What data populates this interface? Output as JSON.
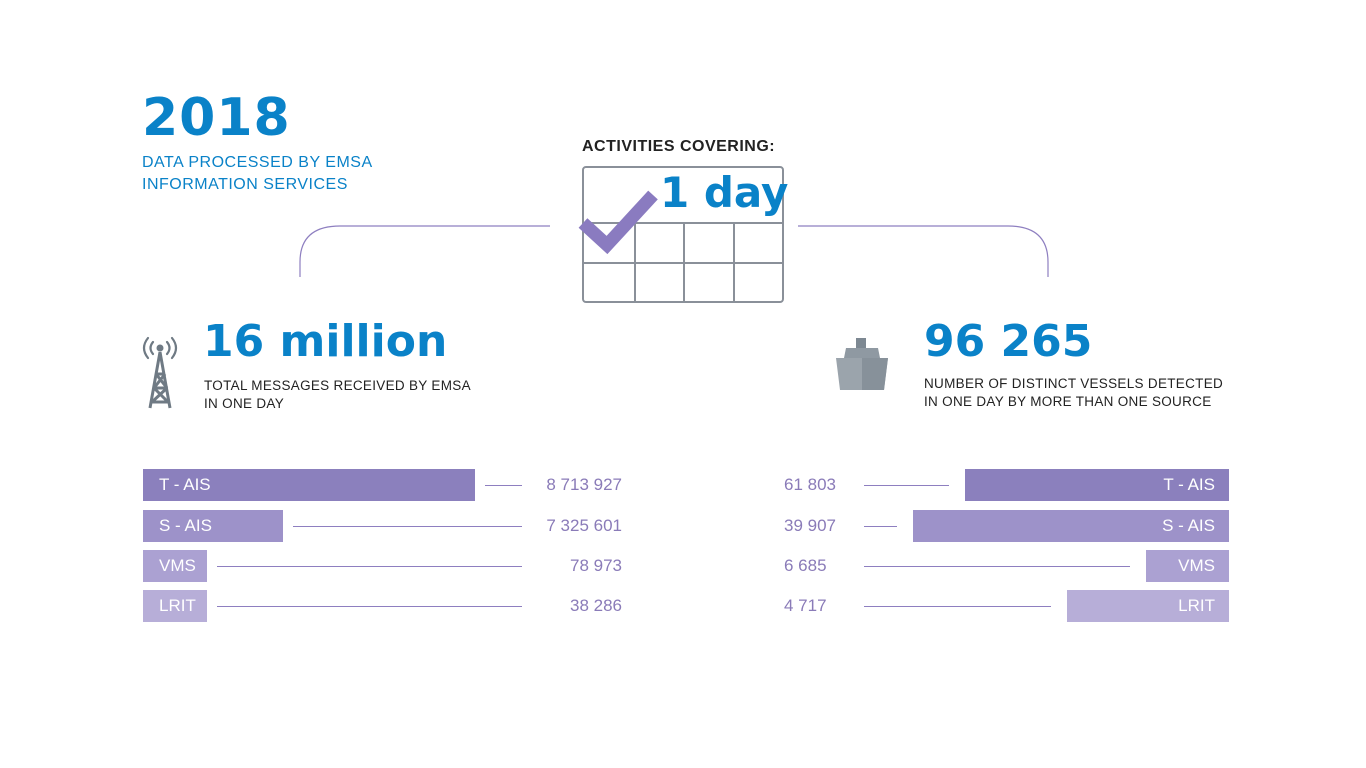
{
  "header": {
    "year": "2018",
    "subtitle_lines": [
      "DATA PROCESSED BY EMSA",
      "INFORMATION SERVICES"
    ]
  },
  "center": {
    "activities_label": "ACTIVITIES COVERING:",
    "period": "1 day"
  },
  "left_panel": {
    "headline": "16 million",
    "caption_lines": [
      "TOTAL MESSAGES RECEIVED BY EMSA",
      "IN ONE DAY"
    ],
    "icon": "antenna-tower-icon"
  },
  "right_panel": {
    "headline": "96 265",
    "caption_lines": [
      "NUMBER OF DISTINCT VESSELS DETECTED",
      "IN ONE DAY BY MORE THAN ONE SOURCE"
    ],
    "icon": "ship-icon"
  },
  "colors": {
    "accent_blue": "#0a82c8",
    "bar_shades": [
      "#8b80bd",
      "#9d92c9",
      "#aba1d2",
      "#b7aed8"
    ],
    "value_text": "#8a7bb8",
    "line": "#8e7fc0"
  },
  "chart_data": [
    {
      "type": "bar",
      "categories": [
        "T - AIS",
        "S - AIS",
        "VMS",
        "LRIT"
      ],
      "values": [
        8713927,
        7325601,
        78973,
        38286
      ],
      "value_labels": [
        "8 713 927",
        "7 325 601",
        "78 973",
        "38 286"
      ]
    },
    {
      "type": "bar",
      "categories": [
        "T - AIS",
        "S - AIS",
        "VMS",
        "LRIT"
      ],
      "values": [
        61803,
        39907,
        6685,
        4717
      ],
      "value_labels": [
        "61 803",
        "39 907",
        "6 685",
        "4 717"
      ]
    }
  ]
}
